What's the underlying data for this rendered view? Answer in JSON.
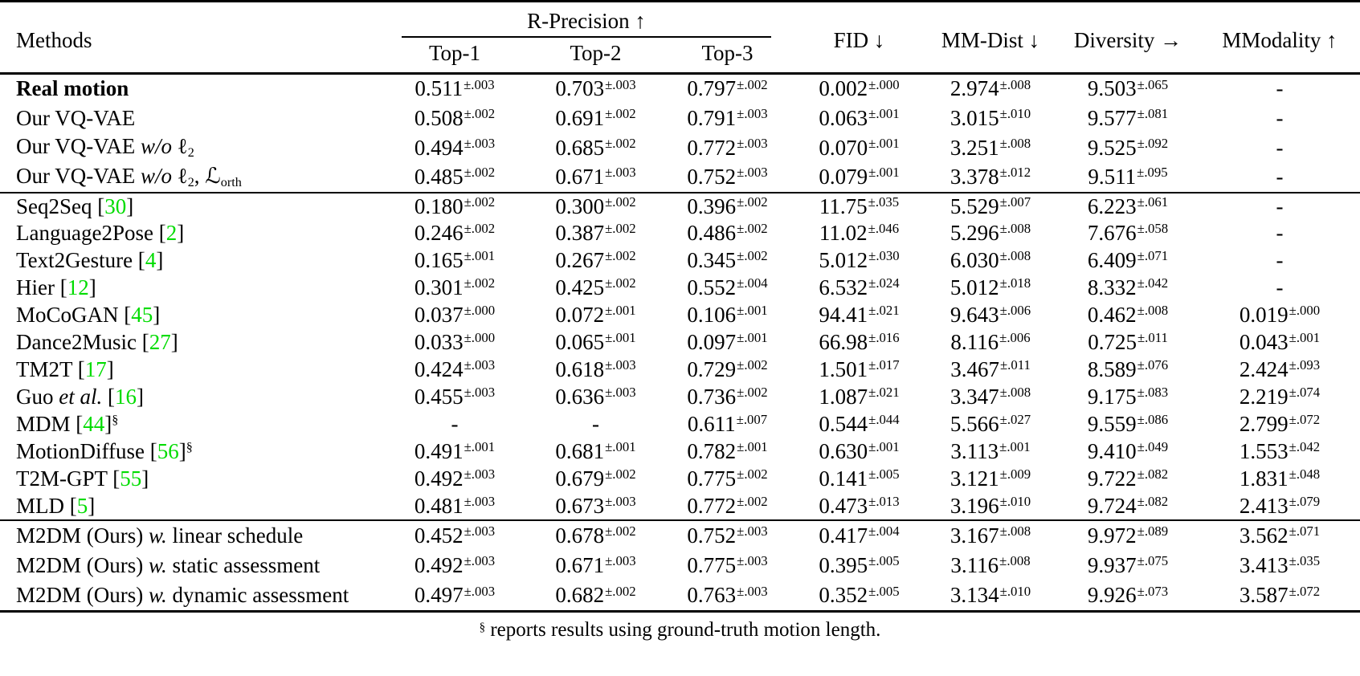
{
  "colors": {
    "citation_green": "#00dc00",
    "text": "#000000",
    "background": "#ffffff"
  },
  "table": {
    "header": {
      "methods_label": "Methods",
      "r_precision_label": "R-Precision ↑",
      "subcols": [
        "Top-1",
        "Top-2",
        "Top-3"
      ],
      "fid_label": "FID ↓",
      "mm_dist_label": "MM-Dist ↓",
      "diversity_label": "Diversity →",
      "mmodality_label": "MModality ↑"
    },
    "footnote": {
      "marker": "§",
      "text": " reports results using ground-truth motion length."
    },
    "groups": [
      {
        "rows": [
          {
            "bold": true,
            "method": [
              {
                "t": "Real motion"
              }
            ],
            "cells": [
              {
                "v": "0.511",
                "e": "±.003"
              },
              {
                "v": "0.703",
                "e": "±.003"
              },
              {
                "v": "0.797",
                "e": "±.002"
              },
              {
                "v": "0.002",
                "e": "±.000"
              },
              {
                "v": "2.974",
                "e": "±.008"
              },
              {
                "v": "9.503",
                "e": "±.065"
              },
              {
                "v": "-"
              }
            ]
          },
          {
            "method": [
              {
                "t": "Our VQ-VAE"
              }
            ],
            "cells": [
              {
                "v": "0.508",
                "e": "±.002"
              },
              {
                "v": "0.691",
                "e": "±.002"
              },
              {
                "v": "0.791",
                "e": "±.003"
              },
              {
                "v": "0.063",
                "e": "±.001"
              },
              {
                "v": "3.015",
                "e": "±.010"
              },
              {
                "v": "9.577",
                "e": "±.081"
              },
              {
                "v": "-"
              }
            ]
          },
          {
            "method": [
              {
                "t": "Our VQ-VAE "
              },
              {
                "t": "w/o",
                "i": 1
              },
              {
                "t": " ℓ"
              },
              {
                "t": "2",
                "sub": 1
              }
            ],
            "cells": [
              {
                "v": "0.494",
                "e": "±.003"
              },
              {
                "v": "0.685",
                "e": "±.002"
              },
              {
                "v": "0.772",
                "e": "±.003"
              },
              {
                "v": "0.070",
                "e": "±.001"
              },
              {
                "v": "3.251",
                "e": "±.008"
              },
              {
                "v": "9.525",
                "e": "±.092"
              },
              {
                "v": "-"
              }
            ]
          },
          {
            "method": [
              {
                "t": "Our VQ-VAE "
              },
              {
                "t": "w/o",
                "i": 1
              },
              {
                "t": " ℓ"
              },
              {
                "t": "2",
                "sub": 1
              },
              {
                "t": ", ℒ"
              },
              {
                "t": "orth",
                "sub": 1
              }
            ],
            "cells": [
              {
                "v": "0.485",
                "e": "±.002"
              },
              {
                "v": "0.671",
                "e": "±.003"
              },
              {
                "v": "0.752",
                "e": "±.003"
              },
              {
                "v": "0.079",
                "e": "±.001"
              },
              {
                "v": "3.378",
                "e": "±.012"
              },
              {
                "v": "9.511",
                "e": "±.095"
              },
              {
                "v": "-"
              }
            ]
          }
        ]
      },
      {
        "rows": [
          {
            "method": [
              {
                "t": "Seq2Seq ["
              },
              {
                "t": "30",
                "cite": 1
              },
              {
                "t": "]"
              }
            ],
            "cells": [
              {
                "v": "0.180",
                "e": "±.002"
              },
              {
                "v": "0.300",
                "e": "±.002"
              },
              {
                "v": "0.396",
                "e": "±.002"
              },
              {
                "v": "11.75",
                "e": "±.035"
              },
              {
                "v": "5.529",
                "e": "±.007"
              },
              {
                "v": "6.223",
                "e": "±.061"
              },
              {
                "v": "-"
              }
            ]
          },
          {
            "method": [
              {
                "t": "Language2Pose ["
              },
              {
                "t": "2",
                "cite": 1
              },
              {
                "t": "]"
              }
            ],
            "cells": [
              {
                "v": "0.246",
                "e": "±.002"
              },
              {
                "v": "0.387",
                "e": "±.002"
              },
              {
                "v": "0.486",
                "e": "±.002"
              },
              {
                "v": "11.02",
                "e": "±.046"
              },
              {
                "v": "5.296",
                "e": "±.008"
              },
              {
                "v": "7.676",
                "e": "±.058"
              },
              {
                "v": "-"
              }
            ]
          },
          {
            "method": [
              {
                "t": "Text2Gesture ["
              },
              {
                "t": "4",
                "cite": 1
              },
              {
                "t": "]"
              }
            ],
            "cells": [
              {
                "v": "0.165",
                "e": "±.001"
              },
              {
                "v": "0.267",
                "e": "±.002"
              },
              {
                "v": "0.345",
                "e": "±.002"
              },
              {
                "v": "5.012",
                "e": "±.030"
              },
              {
                "v": "6.030",
                "e": "±.008"
              },
              {
                "v": "6.409",
                "e": "±.071"
              },
              {
                "v": "-"
              }
            ]
          },
          {
            "method": [
              {
                "t": "Hier ["
              },
              {
                "t": "12",
                "cite": 1
              },
              {
                "t": "]"
              }
            ],
            "cells": [
              {
                "v": "0.301",
                "e": "±.002"
              },
              {
                "v": "0.425",
                "e": "±.002"
              },
              {
                "v": "0.552",
                "e": "±.004"
              },
              {
                "v": "6.532",
                "e": "±.024"
              },
              {
                "v": "5.012",
                "e": "±.018"
              },
              {
                "v": "8.332",
                "e": "±.042"
              },
              {
                "v": "-"
              }
            ]
          },
          {
            "method": [
              {
                "t": "MoCoGAN ["
              },
              {
                "t": "45",
                "cite": 1
              },
              {
                "t": "]"
              }
            ],
            "cells": [
              {
                "v": "0.037",
                "e": "±.000"
              },
              {
                "v": "0.072",
                "e": "±.001"
              },
              {
                "v": "0.106",
                "e": "±.001"
              },
              {
                "v": "94.41",
                "e": "±.021"
              },
              {
                "v": "9.643",
                "e": "±.006"
              },
              {
                "v": "0.462",
                "e": "±.008"
              },
              {
                "v": "0.019",
                "e": "±.000"
              }
            ]
          },
          {
            "method": [
              {
                "t": "Dance2Music ["
              },
              {
                "t": "27",
                "cite": 1
              },
              {
                "t": "]"
              }
            ],
            "cells": [
              {
                "v": "0.033",
                "e": "±.000"
              },
              {
                "v": "0.065",
                "e": "±.001"
              },
              {
                "v": "0.097",
                "e": "±.001"
              },
              {
                "v": "66.98",
                "e": "±.016"
              },
              {
                "v": "8.116",
                "e": "±.006"
              },
              {
                "v": "0.725",
                "e": "±.011"
              },
              {
                "v": "0.043",
                "e": "±.001"
              }
            ]
          },
          {
            "method": [
              {
                "t": "TM2T ["
              },
              {
                "t": "17",
                "cite": 1
              },
              {
                "t": "]"
              }
            ],
            "cells": [
              {
                "v": "0.424",
                "e": "±.003"
              },
              {
                "v": "0.618",
                "e": "±.003"
              },
              {
                "v": "0.729",
                "e": "±.002"
              },
              {
                "v": "1.501",
                "e": "±.017"
              },
              {
                "v": "3.467",
                "e": "±.011"
              },
              {
                "v": "8.589",
                "e": "±.076"
              },
              {
                "v": "2.424",
                "e": "±.093"
              }
            ]
          },
          {
            "method": [
              {
                "t": "Guo "
              },
              {
                "t": "et al.",
                "i": 1
              },
              {
                "t": " ["
              },
              {
                "t": "16",
                "cite": 1
              },
              {
                "t": "]"
              }
            ],
            "cells": [
              {
                "v": "0.455",
                "e": "±.003"
              },
              {
                "v": "0.636",
                "e": "±.003"
              },
              {
                "v": "0.736",
                "e": "±.002"
              },
              {
                "v": "1.087",
                "e": "±.021"
              },
              {
                "v": "3.347",
                "e": "±.008"
              },
              {
                "v": "9.175",
                "e": "±.083"
              },
              {
                "v": "2.219",
                "e": "±.074"
              }
            ]
          },
          {
            "method": [
              {
                "t": "MDM ["
              },
              {
                "t": "44",
                "cite": 1
              },
              {
                "t": "]"
              },
              {
                "t": "§",
                "sup": 1
              }
            ],
            "cells": [
              {
                "v": "-"
              },
              {
                "v": "-"
              },
              {
                "v": "0.611",
                "e": "±.007"
              },
              {
                "v": "0.544",
                "e": "±.044"
              },
              {
                "v": "5.566",
                "e": "±.027"
              },
              {
                "v": "9.559",
                "e": "±.086"
              },
              {
                "v": "2.799",
                "e": "±.072"
              }
            ]
          },
          {
            "method": [
              {
                "t": "MotionDiffuse ["
              },
              {
                "t": "56",
                "cite": 1
              },
              {
                "t": "]"
              },
              {
                "t": "§",
                "sup": 1
              }
            ],
            "cells": [
              {
                "v": "0.491",
                "e": "±.001"
              },
              {
                "v": "0.681",
                "e": "±.001"
              },
              {
                "v": "0.782",
                "e": "±.001"
              },
              {
                "v": "0.630",
                "e": "±.001"
              },
              {
                "v": "3.113",
                "e": "±.001"
              },
              {
                "v": "9.410",
                "e": "±.049"
              },
              {
                "v": "1.553",
                "e": "±.042"
              }
            ]
          },
          {
            "method": [
              {
                "t": "T2M-GPT ["
              },
              {
                "t": "55",
                "cite": 1
              },
              {
                "t": "]"
              }
            ],
            "cells": [
              {
                "v": "0.492",
                "e": "±.003"
              },
              {
                "v": "0.679",
                "e": "±.002"
              },
              {
                "v": "0.775",
                "e": "±.002"
              },
              {
                "v": "0.141",
                "e": "±.005"
              },
              {
                "v": "3.121",
                "e": "±.009"
              },
              {
                "v": "9.722",
                "e": "±.082"
              },
              {
                "v": "1.831",
                "e": "±.048"
              }
            ]
          },
          {
            "method": [
              {
                "t": "MLD ["
              },
              {
                "t": "5",
                "cite": 1
              },
              {
                "t": "]"
              }
            ],
            "cells": [
              {
                "v": "0.481",
                "e": "±.003"
              },
              {
                "v": "0.673",
                "e": "±.003"
              },
              {
                "v": "0.772",
                "e": "±.002"
              },
              {
                "v": "0.473",
                "e": "±.013"
              },
              {
                "v": "3.196",
                "e": "±.010"
              },
              {
                "v": "9.724",
                "e": "±.082"
              },
              {
                "v": "2.413",
                "e": "±.079"
              }
            ]
          }
        ]
      },
      {
        "rows": [
          {
            "method": [
              {
                "t": "M2DM (Ours) "
              },
              {
                "t": "w.",
                "i": 1
              },
              {
                "t": " linear schedule"
              }
            ],
            "cells": [
              {
                "v": "0.452",
                "e": "±.003"
              },
              {
                "v": "0.678",
                "e": "±.002"
              },
              {
                "v": "0.752",
                "e": "±.003"
              },
              {
                "v": "0.417",
                "e": "±.004"
              },
              {
                "v": "3.167",
                "e": "±.008"
              },
              {
                "v": "9.972",
                "e": "±.089"
              },
              {
                "v": "3.562",
                "e": "±.071"
              }
            ]
          },
          {
            "method": [
              {
                "t": "M2DM (Ours) "
              },
              {
                "t": "w.",
                "i": 1
              },
              {
                "t": " static assessment"
              }
            ],
            "cells": [
              {
                "v": "0.492",
                "e": "±.003"
              },
              {
                "v": "0.671",
                "e": "±.003"
              },
              {
                "v": "0.775",
                "e": "±.003"
              },
              {
                "v": "0.395",
                "e": "±.005"
              },
              {
                "v": "3.116",
                "e": "±.008"
              },
              {
                "v": "9.937",
                "e": "±.075"
              },
              {
                "v": "3.413",
                "e": "±.035"
              }
            ]
          },
          {
            "method": [
              {
                "t": "M2DM (Ours) "
              },
              {
                "t": "w.",
                "i": 1
              },
              {
                "t": " dynamic assessment"
              }
            ],
            "cells": [
              {
                "v": "0.497",
                "e": "±.003"
              },
              {
                "v": "0.682",
                "e": "±.002"
              },
              {
                "v": "0.763",
                "e": "±.003"
              },
              {
                "v": "0.352",
                "e": "±.005"
              },
              {
                "v": "3.134",
                "e": "±.010"
              },
              {
                "v": "9.926",
                "e": "±.073"
              },
              {
                "v": "3.587",
                "e": "±.072"
              }
            ]
          }
        ]
      }
    ]
  }
}
